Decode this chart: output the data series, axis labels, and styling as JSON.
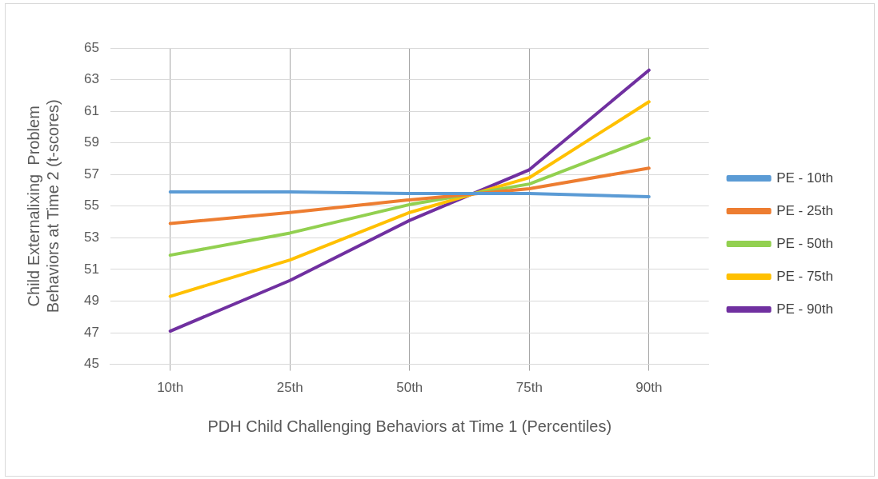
{
  "chart_data": {
    "type": "line",
    "categories": [
      "10th",
      "25th",
      "50th",
      "75th",
      "90th"
    ],
    "xlabel": "PDH Child Challenging Behaviors at Time 1 (Percentiles)",
    "ylabel": "Child Externalixing  Problem Behaviors at Time 2 (t-scores)",
    "ylim": [
      45,
      65
    ],
    "yticks": [
      45,
      47,
      49,
      51,
      53,
      55,
      57,
      59,
      61,
      63,
      65
    ],
    "grid": true,
    "legend": "right",
    "marker": "none",
    "line_style": "solid",
    "series": [
      {
        "name": "PE - 10th",
        "color": "#5b9bd5",
        "values": [
          55.9,
          55.9,
          55.8,
          55.8,
          55.6
        ]
      },
      {
        "name": "PE - 25th",
        "color": "#ed7d31",
        "values": [
          53.9,
          54.6,
          55.4,
          56.1,
          57.4
        ]
      },
      {
        "name": "PE - 50th",
        "color": "#92d050",
        "values": [
          51.9,
          53.3,
          55.1,
          56.4,
          59.3
        ]
      },
      {
        "name": "PE - 75th",
        "color": "#ffc000",
        "values": [
          49.3,
          51.6,
          54.6,
          56.8,
          61.6
        ]
      },
      {
        "name": "PE - 90th",
        "color": "#7030a0",
        "values": [
          47.1,
          50.3,
          54.1,
          57.3,
          63.6
        ]
      }
    ]
  }
}
